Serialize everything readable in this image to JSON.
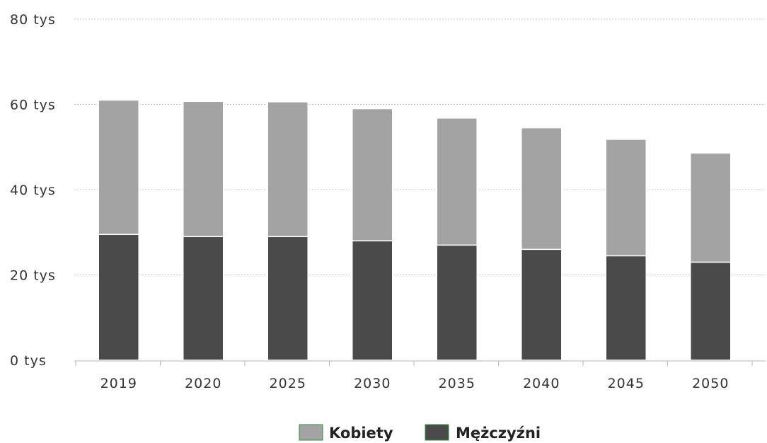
{
  "chart_data": {
    "type": "bar",
    "stacked": true,
    "categories": [
      "2019",
      "2020",
      "2025",
      "2030",
      "2035",
      "2040",
      "2045",
      "2050"
    ],
    "series": [
      {
        "name": "Mężczyźni",
        "color": "#4a4a4a",
        "values": [
          29.5,
          29.0,
          29.0,
          28.0,
          27.0,
          26.0,
          24.5,
          23.0
        ]
      },
      {
        "name": "Kobiety",
        "color": "#a3a3a3",
        "values": [
          31.5,
          31.7,
          31.6,
          31.0,
          29.8,
          28.5,
          27.3,
          25.6
        ]
      }
    ],
    "totals": [
      61.0,
      60.7,
      60.6,
      59.0,
      56.8,
      54.5,
      51.8,
      48.6
    ],
    "ylim": [
      0,
      80
    ],
    "yticks": [
      {
        "value": 0,
        "label": "0 tys"
      },
      {
        "value": 20,
        "label": "20 tys"
      },
      {
        "value": 40,
        "label": "40 tys"
      },
      {
        "value": 60,
        "label": "60 tys"
      },
      {
        "value": 80,
        "label": "80 tys"
      }
    ],
    "grid": true,
    "legend": {
      "position": "bottom-center",
      "order": [
        "Kobiety",
        "Mężczyźni"
      ]
    }
  }
}
